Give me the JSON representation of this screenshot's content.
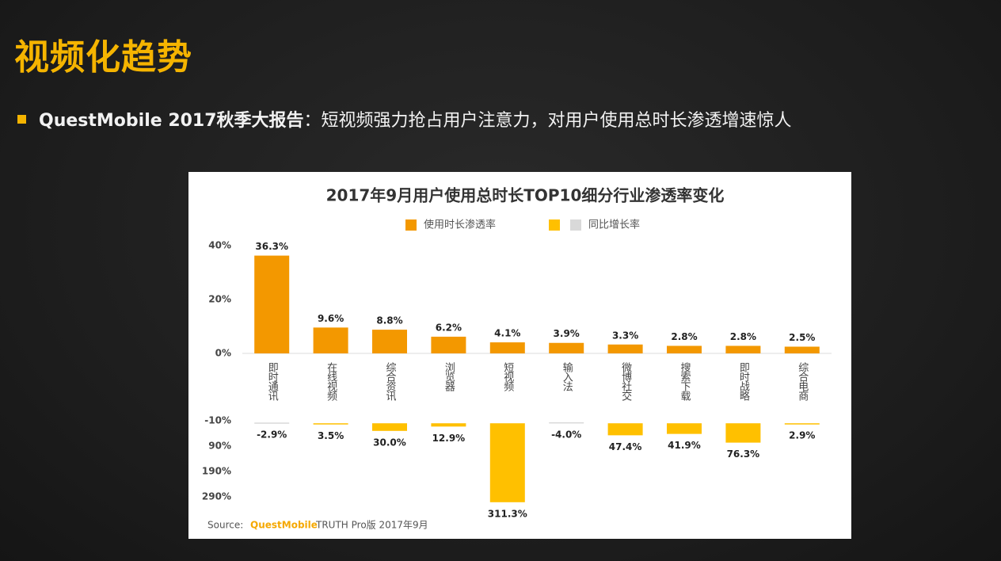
{
  "header": {
    "title": "视频化趋势",
    "bullet_lead": "QuestMobile 2017秋季大报告",
    "bullet_text": "：短视频强力抢占用户注意力，对用户使用总时长渗透增速惊人"
  },
  "source": {
    "prefix": "Source:",
    "brand": "QuestMobile",
    "rest": "TRUTH Pro版 2017年9月"
  },
  "chart_data": [
    {
      "type": "bar",
      "title": "2017年9月用户使用总时长TOP10细分行业渗透率变化",
      "categories": [
        "即时通讯",
        "在线视频",
        "综合资讯",
        "浏览器",
        "短视频",
        "输入法",
        "微博社交",
        "搜索下载",
        "即时战略",
        "综合电商"
      ],
      "series": [
        {
          "name": "使用时长渗透率",
          "color": "#f39800",
          "values": [
            36.3,
            9.6,
            8.8,
            6.2,
            4.1,
            3.9,
            3.3,
            2.8,
            2.8,
            2.5
          ],
          "value_labels": [
            "36.3%",
            "9.6%",
            "8.8%",
            "6.2%",
            "4.1%",
            "3.9%",
            "3.3%",
            "2.8%",
            "2.8%",
            "2.5%"
          ]
        }
      ],
      "ylim": [
        0,
        40
      ],
      "yticks": [
        {
          "value": 0,
          "label": "0%"
        },
        {
          "value": 20,
          "label": "20%"
        },
        {
          "value": 40,
          "label": "40%"
        }
      ],
      "grid": false
    },
    {
      "type": "bar",
      "inverted": true,
      "series": [
        {
          "name": "同比增长率",
          "color": "#ffc000",
          "negative_color": "#d9d9d9",
          "values": [
            -2.9,
            3.5,
            30.0,
            12.9,
            311.3,
            -4.0,
            47.4,
            41.9,
            76.3,
            2.9
          ],
          "value_labels": [
            "-2.9%",
            "3.5%",
            "30.0%",
            "12.9%",
            "311.3%",
            "-4.0%",
            "47.4%",
            "41.9%",
            "76.3%",
            "2.9%"
          ]
        }
      ],
      "ylim": [
        -10,
        320
      ],
      "yticks": [
        {
          "value": -10,
          "label": "-10%"
        },
        {
          "value": 90,
          "label": "90%"
        },
        {
          "value": 190,
          "label": "190%"
        },
        {
          "value": 290,
          "label": "290%"
        }
      ],
      "grid": false
    }
  ]
}
